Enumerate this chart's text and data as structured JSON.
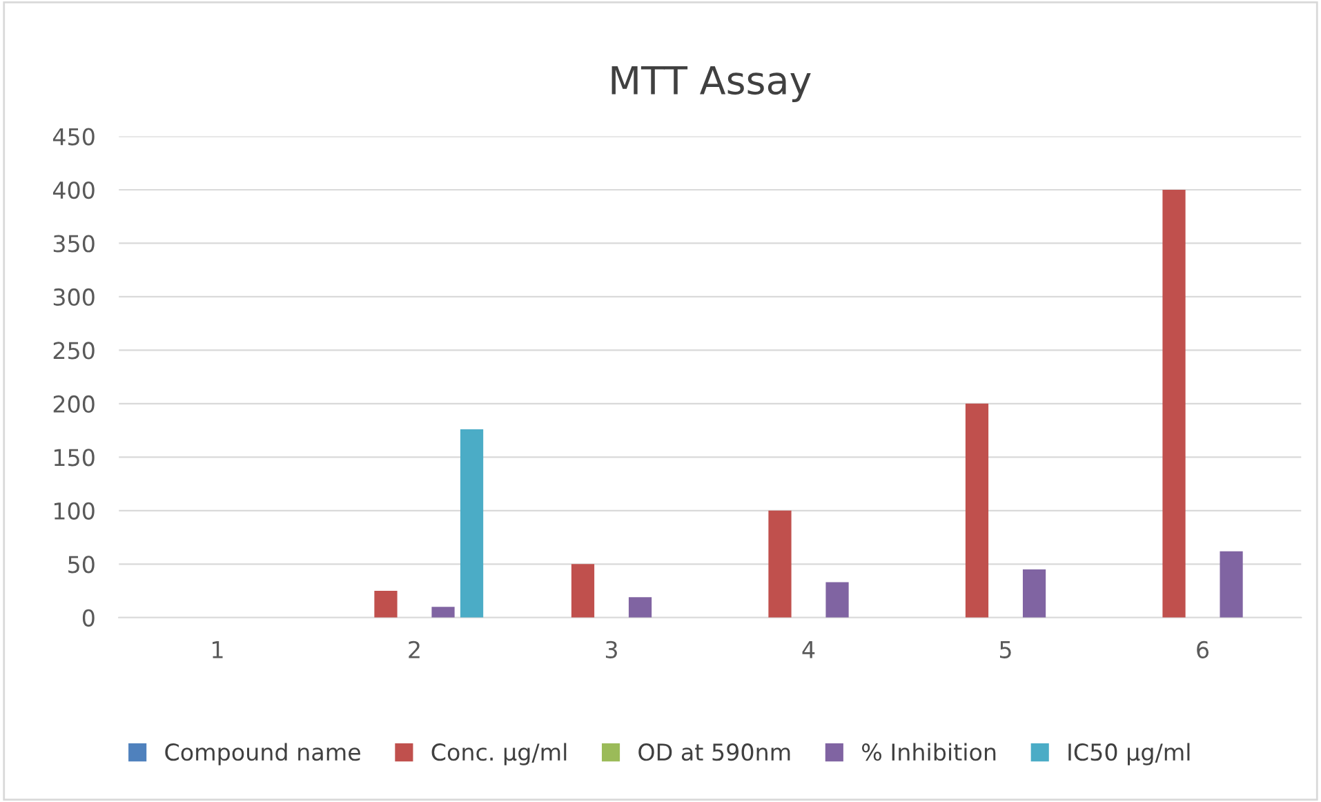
{
  "chart_data": {
    "type": "bar",
    "title": "MTT Assay",
    "categories": [
      "1",
      "2",
      "3",
      "4",
      "5",
      "6"
    ],
    "series": [
      {
        "name": "Compound name",
        "color": "#4f81bd",
        "values": [
          null,
          null,
          null,
          null,
          null,
          null
        ]
      },
      {
        "name": "Conc. µg/ml",
        "color": "#c0504d",
        "values": [
          null,
          25,
          50,
          100,
          200,
          400
        ]
      },
      {
        "name": "OD at 590nm",
        "color": "#9bbb59",
        "values": [
          null,
          null,
          null,
          null,
          null,
          null
        ]
      },
      {
        "name": "% Inhibition",
        "color": "#8064a2",
        "values": [
          null,
          10,
          19,
          33,
          45,
          62
        ]
      },
      {
        "name": "IC50 µg/ml",
        "color": "#4bacc6",
        "values": [
          null,
          176,
          null,
          null,
          null,
          null
        ]
      }
    ],
    "ylim": [
      0,
      450
    ],
    "yticks": [
      0,
      50,
      100,
      150,
      200,
      250,
      300,
      350,
      400,
      450
    ],
    "grid": "y",
    "legend": "bottom"
  }
}
